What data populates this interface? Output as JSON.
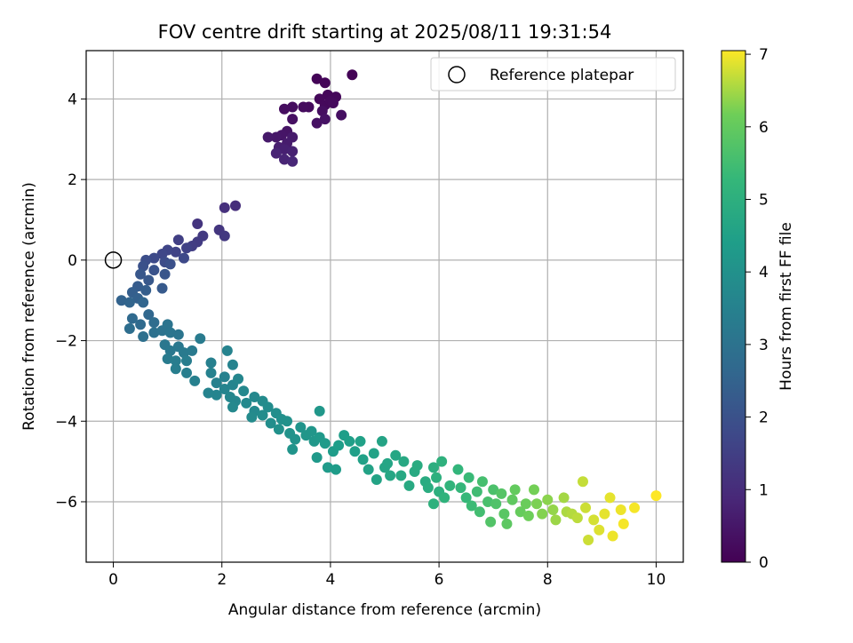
{
  "chart_data": {
    "type": "scatter",
    "title": "FOV centre drift starting at 2025/08/11 19:31:54",
    "xlabel": "Angular distance from reference (arcmin)",
    "ylabel": "Rotation from reference (arcmin)",
    "xlim": [
      -0.5,
      10.5
    ],
    "ylim": [
      -7.5,
      5.2
    ],
    "xticks": [
      0,
      2,
      4,
      6,
      8,
      10
    ],
    "yticks": [
      -6,
      -4,
      -2,
      0,
      2,
      4
    ],
    "grid": true,
    "legend": {
      "position": "upper-right",
      "entries": [
        "Reference platepar"
      ]
    },
    "reference_point": {
      "name": "Reference platepar",
      "x": 0,
      "y": 0
    },
    "colorbar": {
      "label": "Hours from first FF file",
      "range": [
        0,
        7.05
      ],
      "ticks": [
        0,
        1,
        2,
        3,
        4,
        5,
        6,
        7
      ],
      "colormap": "viridis"
    },
    "points": [
      [
        4.4,
        4.6,
        0.05
      ],
      [
        3.75,
        4.5,
        0.08
      ],
      [
        3.9,
        4.4,
        0.1
      ],
      [
        3.95,
        4.1,
        0.12
      ],
      [
        4.1,
        4.05,
        0.14
      ],
      [
        3.8,
        4.0,
        0.15
      ],
      [
        3.9,
        3.85,
        0.17
      ],
      [
        4.0,
        3.95,
        0.18
      ],
      [
        4.05,
        3.9,
        0.2
      ],
      [
        3.6,
        3.8,
        0.22
      ],
      [
        3.5,
        3.8,
        0.24
      ],
      [
        3.3,
        3.8,
        0.26
      ],
      [
        3.15,
        3.75,
        0.28
      ],
      [
        3.85,
        3.7,
        0.3
      ],
      [
        4.2,
        3.6,
        0.32
      ],
      [
        3.3,
        3.5,
        0.34
      ],
      [
        3.75,
        3.4,
        0.36
      ],
      [
        3.9,
        3.5,
        0.38
      ],
      [
        3.2,
        3.2,
        0.42
      ],
      [
        3.1,
        3.1,
        0.46
      ],
      [
        3.0,
        3.05,
        0.5
      ],
      [
        2.85,
        3.05,
        0.55
      ],
      [
        3.3,
        3.05,
        0.58
      ],
      [
        3.2,
        2.9,
        0.62
      ],
      [
        3.05,
        2.8,
        0.66
      ],
      [
        3.15,
        2.75,
        0.7
      ],
      [
        3.3,
        2.7,
        0.74
      ],
      [
        3.0,
        2.65,
        0.78
      ],
      [
        3.15,
        2.5,
        0.82
      ],
      [
        3.3,
        2.45,
        0.86
      ],
      [
        2.25,
        1.35,
        1.05
      ],
      [
        2.05,
        1.3,
        1.1
      ],
      [
        1.55,
        0.9,
        1.2
      ],
      [
        1.95,
        0.75,
        1.25
      ],
      [
        2.05,
        0.6,
        1.3
      ],
      [
        1.65,
        0.6,
        1.35
      ],
      [
        1.55,
        0.45,
        1.4
      ],
      [
        1.45,
        0.35,
        1.45
      ],
      [
        1.2,
        0.5,
        1.5
      ],
      [
        1.35,
        0.3,
        1.55
      ],
      [
        1.15,
        0.2,
        1.6
      ],
      [
        1.0,
        0.25,
        1.65
      ],
      [
        0.9,
        0.15,
        1.7
      ],
      [
        1.3,
        0.05,
        1.75
      ],
      [
        0.75,
        0.05,
        1.8
      ],
      [
        0.95,
        -0.05,
        1.85
      ],
      [
        0.6,
        0.0,
        1.9
      ],
      [
        1.05,
        -0.1,
        1.95
      ],
      [
        0.55,
        -0.15,
        2.0
      ],
      [
        0.75,
        -0.25,
        2.05
      ],
      [
        0.95,
        -0.35,
        2.1
      ],
      [
        0.5,
        -0.35,
        2.15
      ],
      [
        0.65,
        -0.5,
        2.2
      ],
      [
        0.9,
        -0.7,
        2.25
      ],
      [
        0.45,
        -0.65,
        2.3
      ],
      [
        0.6,
        -0.75,
        2.35
      ],
      [
        0.35,
        -0.8,
        2.4
      ],
      [
        0.45,
        -0.95,
        2.45
      ],
      [
        0.15,
        -1.0,
        2.5
      ],
      [
        0.3,
        -1.05,
        2.55
      ],
      [
        0.55,
        -1.05,
        2.6
      ],
      [
        0.65,
        -1.35,
        2.65
      ],
      [
        0.35,
        -1.45,
        2.7
      ],
      [
        0.5,
        -1.6,
        2.75
      ],
      [
        0.75,
        -1.55,
        2.8
      ],
      [
        0.3,
        -1.7,
        2.85
      ],
      [
        0.55,
        -1.9,
        2.9
      ],
      [
        0.75,
        -1.8,
        2.95
      ],
      [
        0.9,
        -1.75,
        3.0
      ],
      [
        1.0,
        -1.6,
        3.05
      ],
      [
        1.05,
        -1.8,
        3.1
      ],
      [
        1.2,
        -1.85,
        3.1
      ],
      [
        0.95,
        -2.1,
        3.15
      ],
      [
        1.05,
        -2.25,
        3.2
      ],
      [
        1.2,
        -2.15,
        3.2
      ],
      [
        1.3,
        -2.3,
        3.25
      ],
      [
        1.45,
        -2.25,
        3.25
      ],
      [
        1.6,
        -1.95,
        3.3
      ],
      [
        1.0,
        -2.45,
        3.3
      ],
      [
        1.15,
        -2.5,
        3.35
      ],
      [
        1.35,
        -2.5,
        3.35
      ],
      [
        1.15,
        -2.7,
        3.4
      ],
      [
        1.35,
        -2.8,
        3.4
      ],
      [
        1.5,
        -3.0,
        3.45
      ],
      [
        1.8,
        -2.55,
        3.45
      ],
      [
        1.8,
        -2.8,
        3.5
      ],
      [
        1.9,
        -3.05,
        3.5
      ],
      [
        2.05,
        -2.9,
        3.5
      ],
      [
        2.1,
        -2.25,
        3.55
      ],
      [
        2.2,
        -2.6,
        3.55
      ],
      [
        1.75,
        -3.3,
        3.55
      ],
      [
        1.9,
        -3.35,
        3.6
      ],
      [
        2.05,
        -3.2,
        3.6
      ],
      [
        2.2,
        -3.1,
        3.6
      ],
      [
        2.3,
        -2.95,
        3.65
      ],
      [
        2.15,
        -3.4,
        3.65
      ],
      [
        2.25,
        -3.5,
        3.65
      ],
      [
        2.4,
        -3.25,
        3.7
      ],
      [
        2.6,
        -3.4,
        3.7
      ],
      [
        2.2,
        -3.65,
        3.7
      ],
      [
        2.45,
        -3.55,
        3.75
      ],
      [
        2.6,
        -3.75,
        3.75
      ],
      [
        2.75,
        -3.5,
        3.8
      ],
      [
        2.55,
        -3.9,
        3.8
      ],
      [
        2.75,
        -3.85,
        3.85
      ],
      [
        2.85,
        -3.65,
        3.85
      ],
      [
        2.9,
        -4.05,
        3.9
      ],
      [
        3.0,
        -3.8,
        3.9
      ],
      [
        3.1,
        -3.95,
        3.95
      ],
      [
        3.2,
        -4.0,
        4.0
      ],
      [
        3.05,
        -4.2,
        4.0
      ],
      [
        3.25,
        -4.3,
        4.05
      ],
      [
        3.35,
        -4.45,
        4.05
      ],
      [
        3.3,
        -4.7,
        4.1
      ],
      [
        3.45,
        -4.15,
        4.1
      ],
      [
        3.55,
        -4.35,
        4.15
      ],
      [
        3.65,
        -4.25,
        4.15
      ],
      [
        3.8,
        -3.75,
        4.2
      ],
      [
        3.7,
        -4.5,
        4.2
      ],
      [
        3.8,
        -4.4,
        4.25
      ],
      [
        3.75,
        -4.9,
        4.25
      ],
      [
        3.9,
        -4.55,
        4.3
      ],
      [
        3.95,
        -5.15,
        4.3
      ],
      [
        4.05,
        -4.75,
        4.35
      ],
      [
        4.1,
        -5.2,
        4.35
      ],
      [
        4.15,
        -4.6,
        4.4
      ],
      [
        4.25,
        -4.35,
        4.4
      ],
      [
        4.35,
        -4.5,
        4.45
      ],
      [
        4.45,
        -4.75,
        4.45
      ],
      [
        4.55,
        -4.5,
        4.5
      ],
      [
        4.6,
        -4.95,
        4.5
      ],
      [
        4.7,
        -5.2,
        4.55
      ],
      [
        4.8,
        -4.8,
        4.55
      ],
      [
        4.85,
        -5.45,
        4.6
      ],
      [
        4.95,
        -4.5,
        4.6
      ],
      [
        5.0,
        -5.15,
        4.65
      ],
      [
        5.05,
        -5.05,
        4.65
      ],
      [
        5.1,
        -5.35,
        4.7
      ],
      [
        5.2,
        -4.85,
        4.7
      ],
      [
        5.3,
        -5.35,
        4.75
      ],
      [
        5.35,
        -5.0,
        4.75
      ],
      [
        5.45,
        -5.6,
        4.8
      ],
      [
        5.55,
        -5.25,
        4.8
      ],
      [
        5.6,
        -5.1,
        4.85
      ],
      [
        5.75,
        -5.5,
        4.85
      ],
      [
        5.8,
        -5.65,
        4.9
      ],
      [
        5.9,
        -5.15,
        4.95
      ],
      [
        5.95,
        -5.4,
        5.0
      ],
      [
        6.0,
        -5.75,
        5.0
      ],
      [
        6.05,
        -5.0,
        5.05
      ],
      [
        5.9,
        -6.05,
        5.05
      ],
      [
        6.1,
        -5.9,
        5.1
      ],
      [
        6.2,
        -5.6,
        5.15
      ],
      [
        6.35,
        -5.2,
        5.2
      ],
      [
        6.4,
        -5.65,
        5.25
      ],
      [
        6.5,
        -5.9,
        5.3
      ],
      [
        6.55,
        -5.4,
        5.35
      ],
      [
        6.6,
        -6.1,
        5.4
      ],
      [
        6.7,
        -5.75,
        5.45
      ],
      [
        6.75,
        -6.25,
        5.5
      ],
      [
        6.8,
        -5.5,
        5.55
      ],
      [
        6.9,
        -6.0,
        5.6
      ],
      [
        7.0,
        -5.7,
        5.65
      ],
      [
        7.05,
        -6.05,
        5.7
      ],
      [
        6.95,
        -6.5,
        5.75
      ],
      [
        7.15,
        -5.8,
        5.8
      ],
      [
        7.2,
        -6.3,
        5.85
      ],
      [
        7.25,
        -6.55,
        5.9
      ],
      [
        7.35,
        -5.95,
        5.95
      ],
      [
        7.4,
        -5.7,
        6.0
      ],
      [
        7.5,
        -6.25,
        6.05
      ],
      [
        7.6,
        -6.05,
        6.1
      ],
      [
        7.65,
        -6.35,
        6.15
      ],
      [
        7.75,
        -5.7,
        6.2
      ],
      [
        7.8,
        -6.05,
        6.25
      ],
      [
        7.9,
        -6.3,
        6.3
      ],
      [
        8.0,
        -5.95,
        6.35
      ],
      [
        8.1,
        -6.2,
        6.4
      ],
      [
        8.15,
        -6.45,
        6.45
      ],
      [
        8.3,
        -5.9,
        6.5
      ],
      [
        8.35,
        -6.25,
        6.55
      ],
      [
        8.45,
        -6.3,
        6.6
      ],
      [
        8.55,
        -6.4,
        6.65
      ],
      [
        8.65,
        -5.5,
        6.7
      ],
      [
        8.7,
        -6.15,
        6.75
      ],
      [
        8.75,
        -6.95,
        6.75
      ],
      [
        8.85,
        -6.45,
        6.8
      ],
      [
        8.95,
        -6.7,
        6.85
      ],
      [
        9.05,
        -6.3,
        6.9
      ],
      [
        9.15,
        -5.9,
        6.9
      ],
      [
        9.2,
        -6.85,
        6.95
      ],
      [
        9.35,
        -6.2,
        6.95
      ],
      [
        9.4,
        -6.55,
        7.0
      ],
      [
        9.6,
        -6.15,
        7.0
      ],
      [
        10.0,
        -5.85,
        7.05
      ]
    ]
  }
}
